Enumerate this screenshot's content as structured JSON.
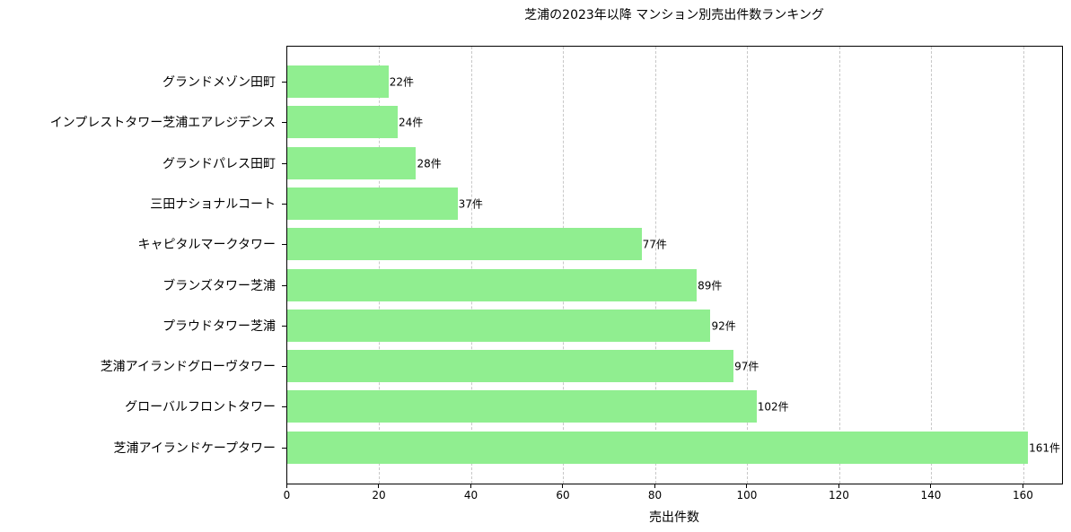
{
  "chart_data": {
    "type": "bar",
    "orientation": "horizontal",
    "title": "芝浦の2023年以降 マンション別売出件数ランキング",
    "xlabel": "売出件数",
    "ylabel": "",
    "xlim": [
      0,
      168.4
    ],
    "xticks": [
      0,
      20,
      40,
      60,
      80,
      100,
      120,
      140,
      160
    ],
    "grid": {
      "x": true,
      "y": false,
      "style": "dashed"
    },
    "bar_color": "#90ee90",
    "value_suffix": "件",
    "categories": [
      "グランドメゾン田町",
      "インプレストタワー芝浦エアレジデンス",
      "グランドパレス田町",
      "三田ナショナルコート",
      "キャピタルマークタワー",
      "ブランズタワー芝浦",
      "プラウドタワー芝浦",
      "芝浦アイランドグローヴタワー",
      "グローバルフロントタワー",
      "芝浦アイランドケープタワー"
    ],
    "values": [
      22,
      24,
      28,
      37,
      77,
      89,
      92,
      97,
      102,
      161
    ],
    "value_labels": [
      "22件",
      "24件",
      "28件",
      "37件",
      "77件",
      "89件",
      "92件",
      "97件",
      "102件",
      "161件"
    ]
  }
}
